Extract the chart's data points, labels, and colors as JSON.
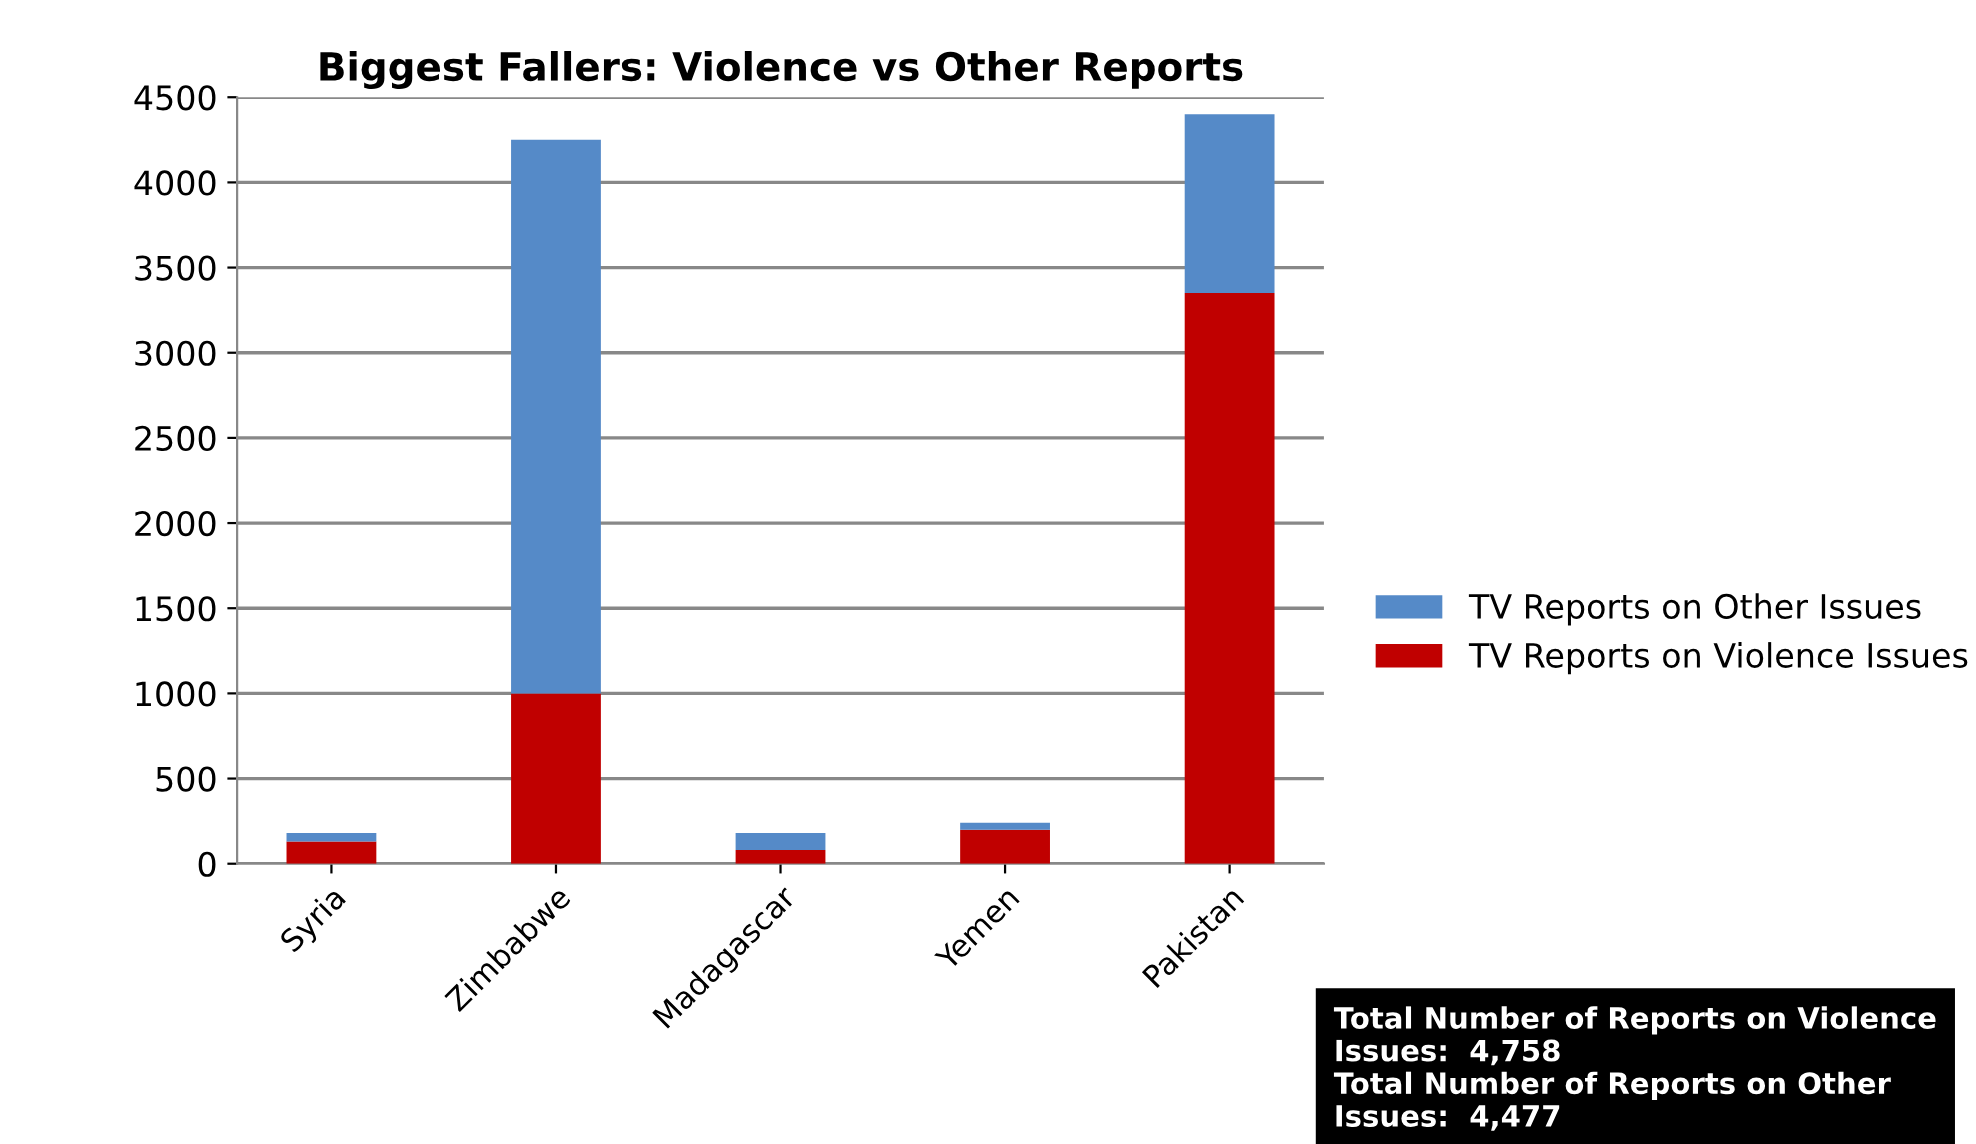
{
  "chart_data": {
    "type": "bar",
    "title": "Biggest Fallers: Violence vs Other Reports",
    "categories": [
      "Syria",
      "Zimbabwe",
      "Madagascar",
      "Yemen",
      "Pakistan"
    ],
    "stacked": true,
    "series": [
      {
        "name": "TV Reports on Violence Issues",
        "color": "#c00000",
        "values": [
          130,
          1000,
          80,
          200,
          3350
        ]
      },
      {
        "name": "TV Reports on Other Issues",
        "color": "#558ac8",
        "values": [
          50,
          3250,
          100,
          40,
          1050
        ]
      }
    ],
    "ylim": [
      0,
      4500
    ],
    "yticks": [
      0,
      500,
      1000,
      1500,
      2000,
      2500,
      3000,
      3500,
      4000,
      4500
    ],
    "grid": "y",
    "legend": "right",
    "annotations": [
      "Total Number of Reports on Violence Issues:  4,758\nTotal Number of Reports on Other Issues:  4,477"
    ]
  }
}
